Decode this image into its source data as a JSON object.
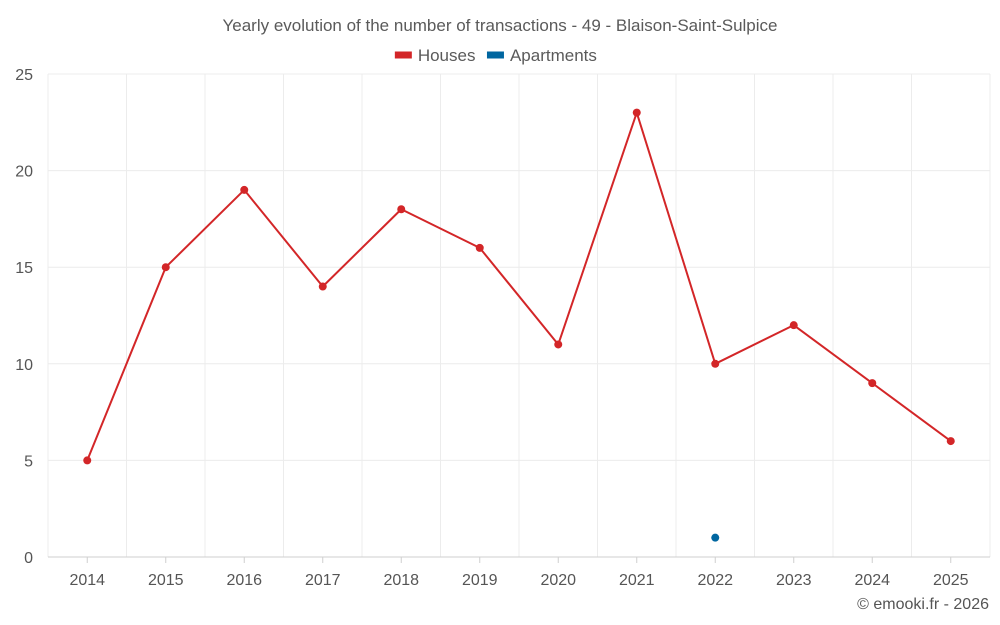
{
  "chart_data": {
    "type": "line",
    "title": "Yearly evolution of the number of transactions - 49 - Blaison-Saint-Sulpice",
    "xlabel": "",
    "ylabel": "",
    "categories": [
      "2014",
      "2015",
      "2016",
      "2017",
      "2018",
      "2019",
      "2020",
      "2021",
      "2022",
      "2023",
      "2024",
      "2025"
    ],
    "ylim": [
      0,
      25
    ],
    "yticks": [
      0,
      5,
      10,
      15,
      20,
      25
    ],
    "grid": true,
    "legend_position": "top-center",
    "series": [
      {
        "name": "Houses",
        "color": "#d32628",
        "values": [
          5,
          15,
          19,
          14,
          18,
          16,
          11,
          23,
          10,
          12,
          9,
          6
        ]
      },
      {
        "name": "Apartments",
        "color": "#0066a0",
        "values": [
          null,
          null,
          null,
          null,
          null,
          null,
          null,
          null,
          1,
          null,
          null,
          null
        ]
      }
    ]
  },
  "footer": {
    "copyright": "© emooki.fr - 2026"
  }
}
